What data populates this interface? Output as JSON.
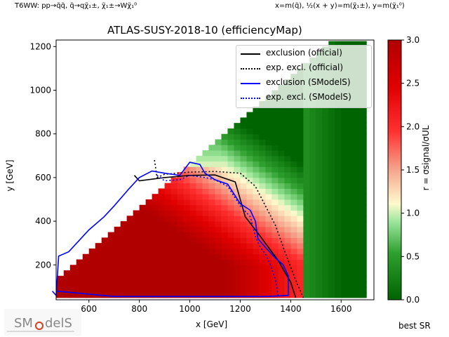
{
  "header": {
    "left_text": "T6WW: pp→q̃q̃, q̃→qχ̃₁±, χ̃₁±→Wχ̃₁⁰",
    "right_text": "x=m(q̃), ½(x + y)=m(χ̃₁±), y=m(χ̃₁⁰)"
  },
  "footer": {
    "best_sr": "best SR",
    "logo_text": "SModelS"
  },
  "colors": {
    "official_line": "#000000",
    "smodels_line": "#0000ff",
    "cmap_low": "#006400",
    "cmap_mid": "#fffacd",
    "cmap_high": "#b00000"
  },
  "chart_data": {
    "type": "heatmap",
    "title": "ATLAS-SUSY-2018-10 (efficiencyMap)",
    "xlabel": "x [GeV]",
    "ylabel": "y [GeV]",
    "xlim": [
      470,
      1730
    ],
    "ylim": [
      40,
      1230
    ],
    "xticks": [
      600,
      800,
      1000,
      1200,
      1400,
      1600
    ],
    "yticks": [
      200,
      400,
      600,
      800,
      1000,
      1200
    ],
    "colorbar": {
      "label": "r = σsignal/σUL",
      "range": [
        0.0,
        3.0
      ],
      "ticks": [
        0.0,
        0.5,
        1.0,
        1.5,
        2.0,
        2.5,
        3.0
      ],
      "tick_labels": [
        "0.0",
        "0.5",
        "1.0",
        "1.5",
        "2.0",
        "2.5",
        "3.0"
      ]
    },
    "legend": {
      "position": "top-right",
      "entries": [
        {
          "label": "exclusion (official)",
          "color": "#000000",
          "style": "solid"
        },
        {
          "label": "exp. excl. (official)",
          "color": "#000000",
          "style": "dotted"
        },
        {
          "label": "exclusion (SModelS)",
          "color": "#0000ff",
          "style": "solid"
        },
        {
          "label": "exp. excl. (SModelS)",
          "color": "#0000ff",
          "style": "dotted"
        }
      ]
    },
    "series": [
      {
        "name": "exclusion (official)",
        "x": [
          780,
          800,
          900,
          1000,
          1100,
          1180,
          1220,
          1280,
          1350,
          1400,
          1420
        ],
        "y": [
          610,
          585,
          600,
          610,
          612,
          580,
          420,
          330,
          220,
          120,
          50
        ]
      },
      {
        "name": "exp. excl. (official)",
        "x": [
          860,
          870,
          900,
          1000,
          1100,
          1200,
          1260,
          1300,
          1340,
          1380,
          1420,
          1450
        ],
        "y": [
          680,
          600,
          615,
          625,
          628,
          620,
          560,
          470,
          380,
          250,
          130,
          50
        ]
      },
      {
        "name": "exclusion (SModelS)",
        "x": [
          455,
          470,
          480,
          520,
          600,
          660,
          700,
          760,
          800,
          850,
          900,
          960,
          1000,
          1040,
          1060,
          1100,
          1150,
          1200,
          1240,
          1260,
          1270,
          1300,
          1340,
          1370,
          1390,
          1390,
          1300,
          1100,
          900,
          700,
          470
        ],
        "y": [
          80,
          60,
          240,
          260,
          360,
          420,
          470,
          550,
          600,
          630,
          620,
          610,
          670,
          660,
          620,
          590,
          570,
          480,
          450,
          400,
          320,
          280,
          230,
          200,
          150,
          60,
          55,
          55,
          55,
          55,
          80
        ]
      },
      {
        "name": "exp. excl. (SModelS)",
        "x": [
          870,
          900,
          960,
          1000,
          1060,
          1100,
          1150,
          1200,
          1240,
          1260,
          1280,
          1300,
          1320,
          1340,
          1350
        ],
        "y": [
          610,
          585,
          590,
          610,
          600,
          590,
          560,
          470,
          420,
          330,
          280,
          250,
          200,
          130,
          60
        ]
      }
    ],
    "grid": false
  }
}
